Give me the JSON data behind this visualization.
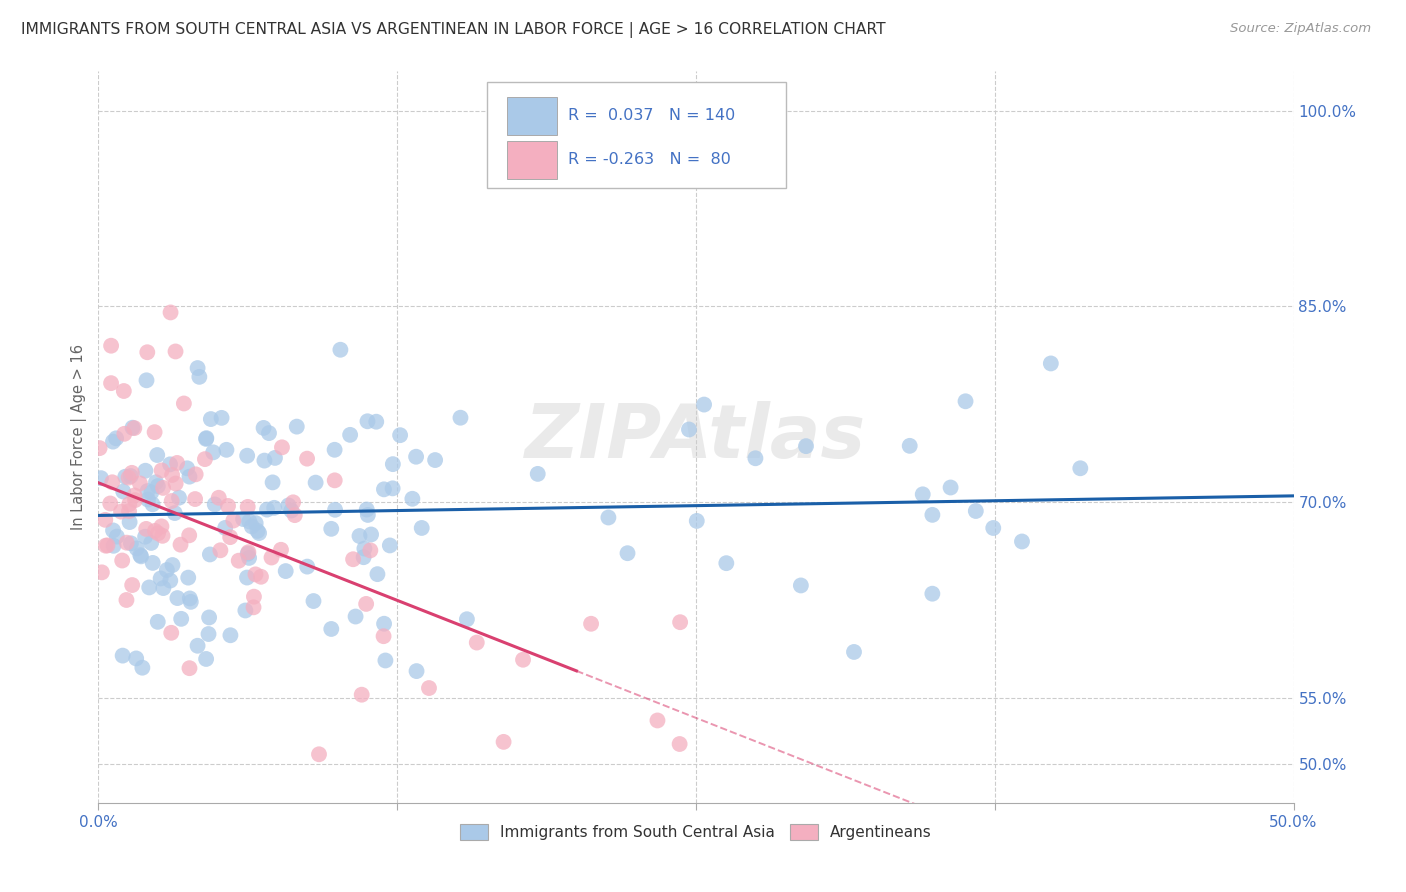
{
  "title": "IMMIGRANTS FROM SOUTH CENTRAL ASIA VS ARGENTINEAN IN LABOR FORCE | AGE > 16 CORRELATION CHART",
  "source": "Source: ZipAtlas.com",
  "ylabel_label": "In Labor Force | Age > 16",
  "xmin": 0.0,
  "xmax": 50.0,
  "ymin": 47.0,
  "ymax": 103.0,
  "yticks": [
    50.0,
    55.0,
    70.0,
    85.0,
    100.0
  ],
  "ytick_labels": [
    "50.0%",
    "55.0%",
    "70.0%",
    "85.0%",
    "100.0%"
  ],
  "xticks": [
    0.0,
    12.5,
    25.0,
    37.5,
    50.0
  ],
  "xtick_labels": [
    "0.0%",
    "",
    "",
    "",
    "50.0%"
  ],
  "blue_R": 0.037,
  "blue_N": 140,
  "pink_R": -0.263,
  "pink_N": 80,
  "blue_color": "#aac9e8",
  "pink_color": "#f4afc0",
  "blue_line_color": "#1a5fa8",
  "pink_line_color": "#d94070",
  "axis_color": "#4472c4",
  "legend_label_blue": "Immigrants from South Central Asia",
  "legend_label_pink": "Argentineans",
  "watermark": "ZIPAtlas",
  "blue_x_intercept": 0.0,
  "blue_y_intercept": 69.0,
  "blue_slope": 0.03,
  "pink_x_intercept": 0.0,
  "pink_y_intercept": 71.5,
  "pink_slope": -0.72,
  "pink_solid_end": 20.0
}
